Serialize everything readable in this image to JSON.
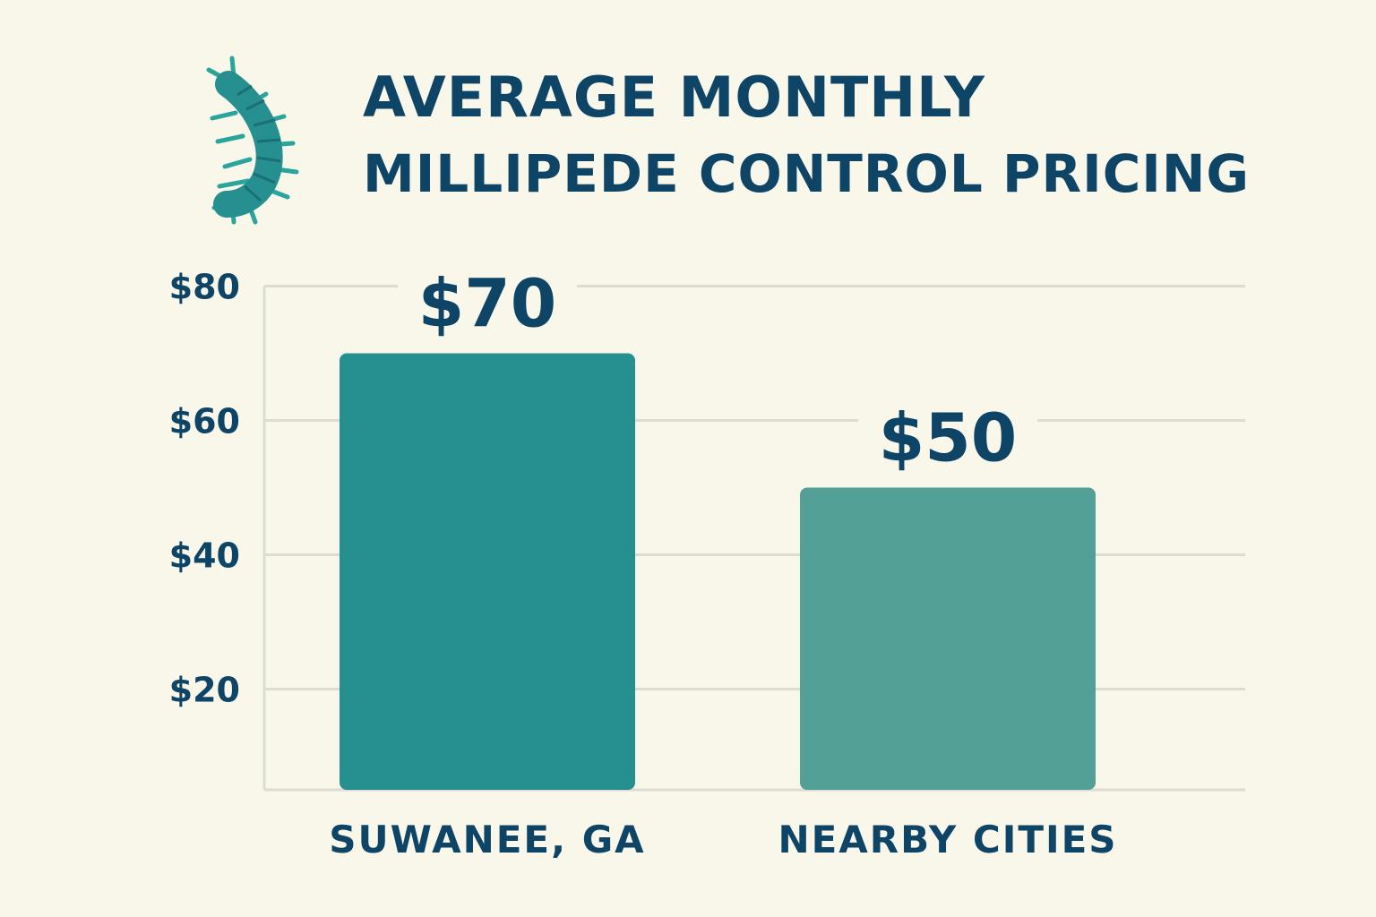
{
  "title": {
    "line1": "AVERAGE MONTHLY",
    "line2": "MILLIPEDE CONTROL PRICING"
  },
  "icon": "millipede-icon",
  "colors": {
    "background": "#f9f6ea",
    "text": "#0e4466",
    "grid": "#dcdcd2",
    "bar_primary": "#268f8f",
    "bar_secondary": "#52a096"
  },
  "chart_data": {
    "type": "bar",
    "categories": [
      "SUWANEE, GA",
      "NEARBY CITIES"
    ],
    "values": [
      70,
      50
    ],
    "data_labels": [
      "$70",
      "$50"
    ],
    "yticks": [
      20,
      40,
      60,
      80
    ],
    "ytick_labels": [
      "$20",
      "$40",
      "$60",
      "$80"
    ],
    "ylim": [
      5,
      80
    ],
    "grid": true,
    "legend": "none"
  }
}
